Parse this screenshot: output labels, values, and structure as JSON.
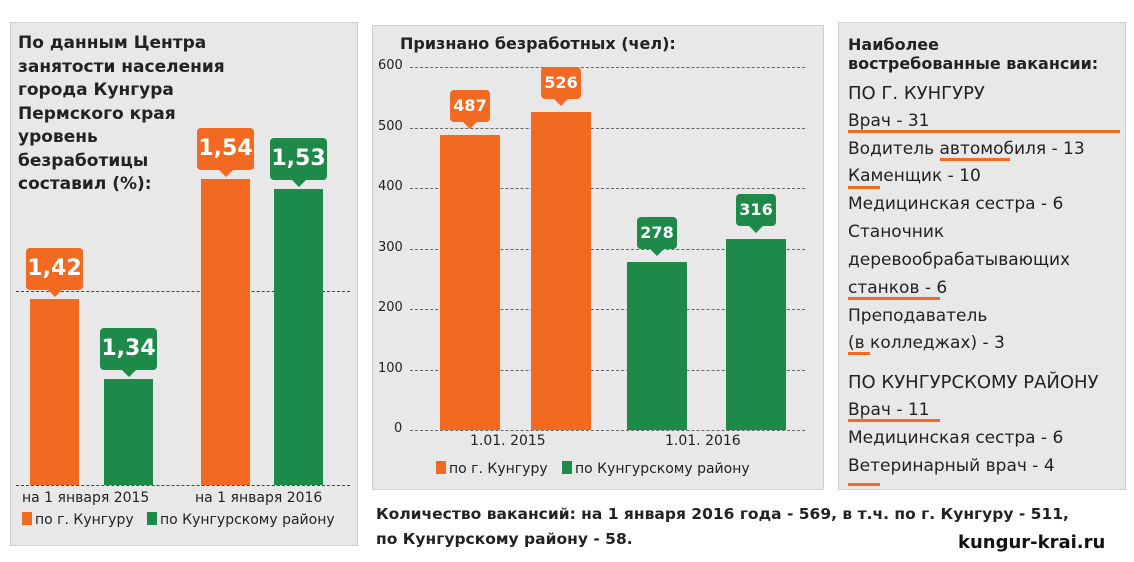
{
  "colors": {
    "orange": "#f26a22",
    "green": "#1e8a4a",
    "panel": "#e8e8e8"
  },
  "chart_data": [
    {
      "type": "bar",
      "title": "По данным Центра занятости населения города Кунгура Пермского края уровень безработицы составил (%):",
      "title_lines": [
        "По данным Центра",
        "занятости населения",
        "города Кунгура",
        "Пермского края",
        "уровень",
        "безработицы",
        "составил (%):"
      ],
      "categories": [
        "на 1 января 2015",
        "на 1 января 2016"
      ],
      "series": [
        {
          "name": "по г. Кунгуру",
          "values": [
            1.42,
            1.54
          ],
          "labels": [
            "1,42",
            "1,54"
          ]
        },
        {
          "name": "по Кунгурскому району",
          "values": [
            1.34,
            1.53
          ],
          "labels": [
            "1,34",
            "1,53"
          ]
        }
      ],
      "legend": "bottom"
    },
    {
      "type": "bar",
      "title": "Признано безработных (чел):",
      "categories": [
        "1.01. 2015",
        "1.01. 2016"
      ],
      "series": [
        {
          "name": "по г. Кунгуру",
          "values": [
            487,
            526
          ]
        },
        {
          "name": "по Кунгурскому району",
          "values": [
            278,
            316
          ]
        }
      ],
      "ylim": [
        0,
        600
      ],
      "yticks": [
        "0",
        "100",
        "200",
        "300",
        "400",
        "500",
        "600"
      ],
      "grid": true,
      "legend": "bottom"
    }
  ],
  "vacancies": {
    "title_lines": [
      "Наиболее",
      "востребованные вакансии:"
    ],
    "city_header": "ПО Г. КУНГУРУ",
    "city_items": [
      "Врач - 31",
      "Водитель автомобиля - 13",
      "Каменщик - 10",
      "Медицинская сестра - 6",
      "Станочник",
      "деревообрабатывающих",
      "станков - 6",
      "Преподаватель",
      "(в колледжах) - 3"
    ],
    "district_header": "ПО КУНГУРСКОМУ РАЙОНУ",
    "district_items": [
      "Врач - 11",
      "Медицинская сестра - 6",
      "Ветеринарный врач - 4"
    ]
  },
  "footer": {
    "line1": "Количество вакансий: на 1 января 2016 года - 569, в т.ч. по г. Кунгуру - 511,",
    "line2": "по Кунгурскому району - 58.",
    "site": "kungur-krai.ru"
  }
}
